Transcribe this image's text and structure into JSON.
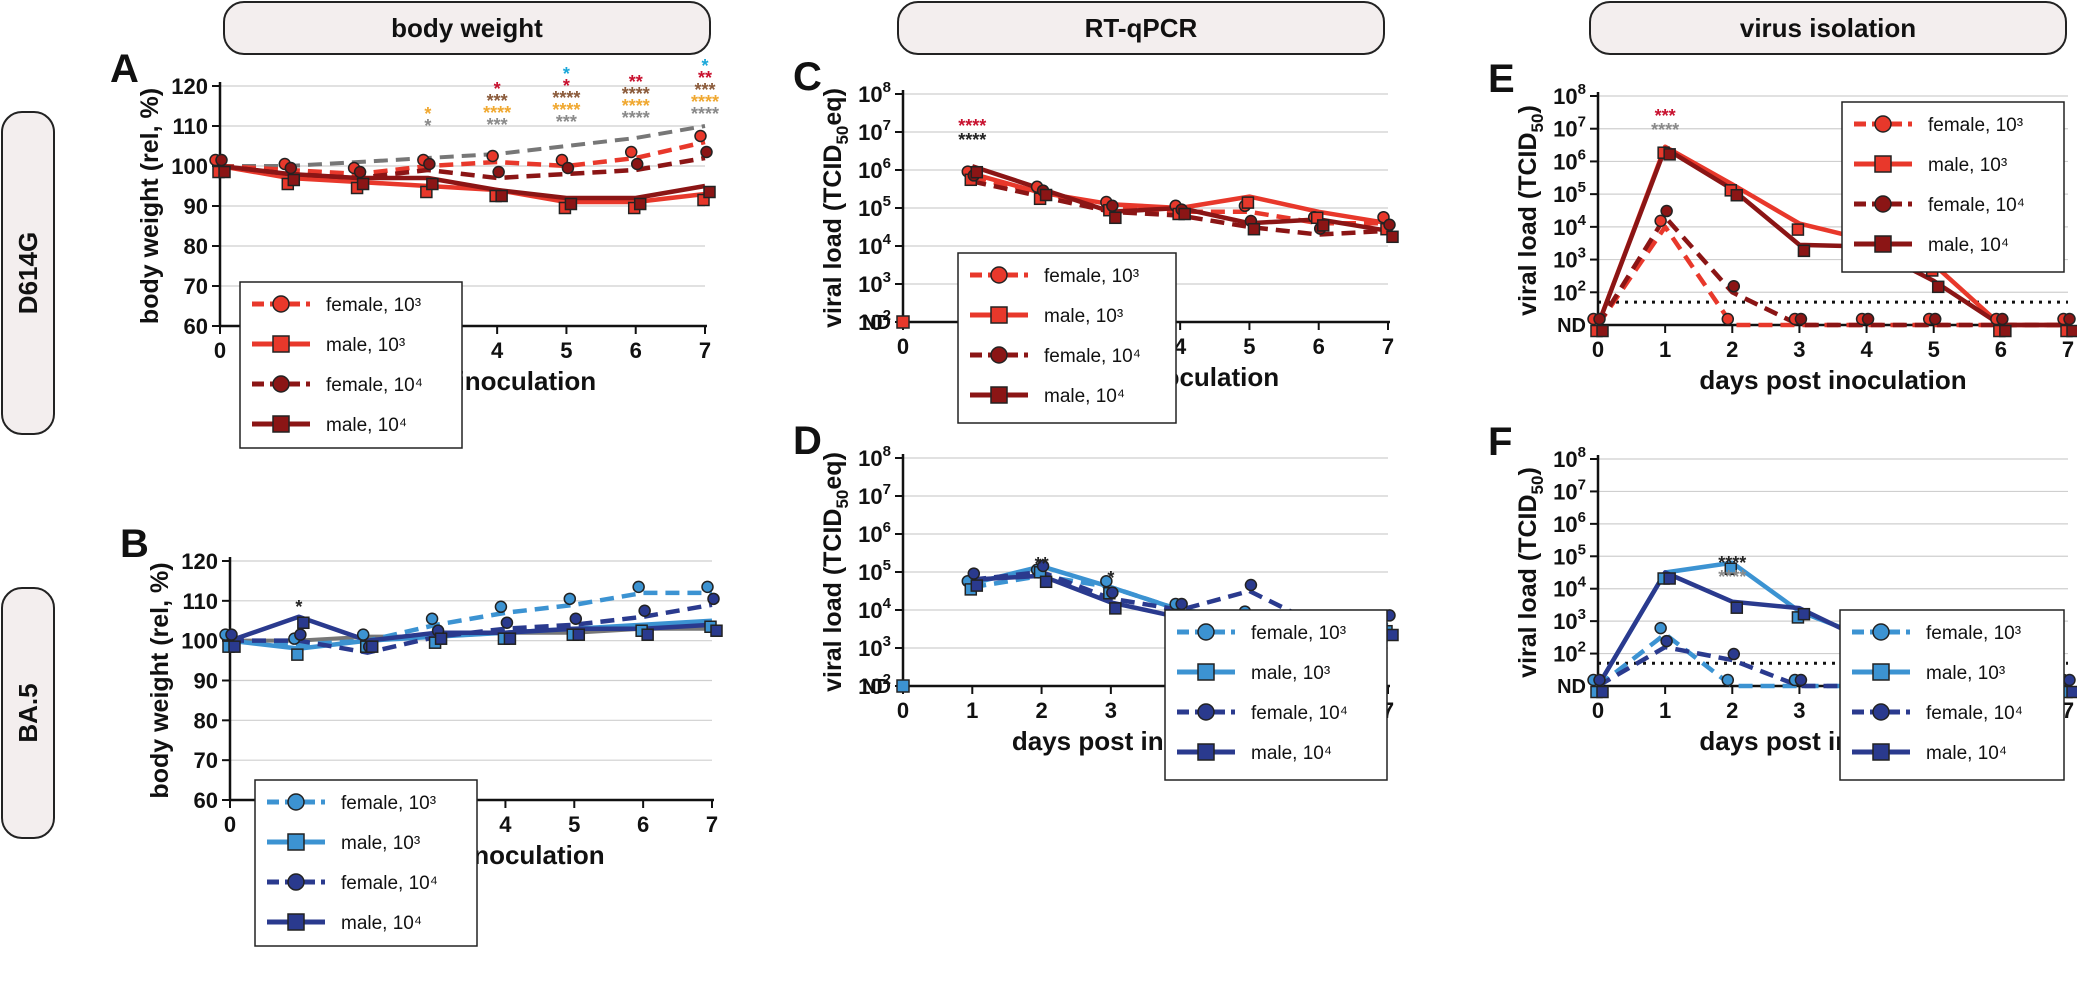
{
  "columns": [
    {
      "label": "body weight"
    },
    {
      "label": "RT-qPCR"
    },
    {
      "label": "virus isolation"
    }
  ],
  "rows": [
    {
      "label": "D614G"
    },
    {
      "label": "BA.5"
    }
  ],
  "colors": {
    "red_light": "#e8382b",
    "red_dark": "#8b1515",
    "blue_light": "#3c93d2",
    "blue_dark": "#2a3a8e",
    "gray": "#777777",
    "sig_crimson": "#c8102e",
    "sig_brown": "#8a5a3a",
    "sig_orange": "#f0a830",
    "sig_gray": "#8a8a8a",
    "sig_cyan": "#1aa7d9",
    "sig_black": "#222222"
  },
  "chart_data": [
    {
      "panel": "A",
      "type": "line",
      "xlabel": "days post inoculation",
      "ylabel": "body weight (rel, %)",
      "x": [
        0,
        1,
        2,
        3,
        4,
        5,
        6,
        7
      ],
      "ylim": [
        60,
        120
      ],
      "yticks": [
        60,
        70,
        80,
        90,
        100,
        110,
        120
      ],
      "legend": [
        "female, 10³",
        "male, 10³",
        "female, 10⁴",
        "male, 10⁴"
      ],
      "series": [
        {
          "name": "female, 10³",
          "values": [
            100,
            99,
            98,
            100,
            101,
            100,
            102,
            106
          ]
        },
        {
          "name": "male, 10³",
          "values": [
            100,
            97,
            96,
            95,
            94,
            91,
            91,
            93
          ]
        },
        {
          "name": "female, 10⁴",
          "values": [
            100,
            98,
            97,
            99,
            97,
            98,
            99,
            102
          ]
        },
        {
          "name": "male, 10⁴",
          "values": [
            100,
            98,
            97,
            97,
            94,
            92,
            92,
            95
          ]
        },
        {
          "name": "reference (gray)",
          "values": [
            100,
            100,
            101,
            102,
            103,
            105,
            107,
            110
          ]
        }
      ],
      "significance": [
        {
          "day": 3,
          "marks": [
            "*",
            "*"
          ]
        },
        {
          "day": 4,
          "marks": [
            "*",
            "***",
            "****",
            "***"
          ]
        },
        {
          "day": 5,
          "marks": [
            "*",
            "*",
            "****",
            "****",
            "***"
          ]
        },
        {
          "day": 6,
          "marks": [
            "**",
            "****",
            "****",
            "****"
          ]
        },
        {
          "day": 7,
          "marks": [
            "*",
            "**",
            "***",
            "****",
            "****"
          ]
        }
      ]
    },
    {
      "panel": "B",
      "type": "line",
      "xlabel": "days post inoculation",
      "ylabel": "body weight (rel, %)",
      "x": [
        0,
        1,
        2,
        3,
        4,
        5,
        6,
        7
      ],
      "ylim": [
        60,
        120
      ],
      "yticks": [
        60,
        70,
        80,
        90,
        100,
        110,
        120
      ],
      "legend": [
        "female, 10³",
        "male, 10³",
        "female, 10⁴",
        "male, 10⁴"
      ],
      "series": [
        {
          "name": "female, 10³",
          "values": [
            100,
            99,
            100,
            104,
            107,
            109,
            112,
            112
          ]
        },
        {
          "name": "male, 10³",
          "values": [
            100,
            98,
            100,
            101,
            102,
            103,
            104,
            105
          ]
        },
        {
          "name": "female, 10⁴",
          "values": [
            100,
            100,
            97,
            101,
            103,
            104,
            106,
            109
          ]
        },
        {
          "name": "male, 10⁴",
          "values": [
            100,
            106,
            100,
            102,
            102,
            103,
            103,
            104
          ]
        },
        {
          "name": "reference (gray)",
          "values": [
            100,
            100,
            101,
            101,
            102,
            102,
            103,
            103
          ]
        }
      ],
      "significance": [
        {
          "day": 1,
          "marks": [
            "*"
          ]
        }
      ]
    },
    {
      "panel": "C",
      "type": "line",
      "yscale": "log",
      "xlabel": "days post inoculation",
      "ylabel": "viral load (TCID50eq)",
      "x": [
        0,
        1,
        2,
        3,
        4,
        5,
        6,
        7
      ],
      "ylim_exponent": [
        2,
        8
      ],
      "ytick_exponents": [
        2,
        3,
        4,
        5,
        6,
        7,
        8
      ],
      "ytick_bottom_label": "ND",
      "legend": [
        "female, 10³",
        "male, 10³",
        "female, 10⁴",
        "male, 10⁴"
      ],
      "series_log10": [
        {
          "name": "female, 10³",
          "values": [
            null,
            5.8,
            5.4,
            5.0,
            4.9,
            4.9,
            4.6,
            4.6
          ]
        },
        {
          "name": "male, 10³",
          "values": [
            null,
            5.9,
            5.4,
            5.1,
            5.0,
            5.3,
            4.9,
            4.6
          ]
        },
        {
          "name": "female, 10⁴",
          "values": [
            null,
            5.7,
            5.3,
            4.9,
            4.8,
            4.5,
            4.3,
            4.4
          ]
        },
        {
          "name": "male, 10⁴",
          "values": [
            null,
            6.1,
            5.5,
            4.9,
            5.0,
            4.6,
            4.7,
            4.4
          ]
        }
      ],
      "significance": [
        {
          "day": 1,
          "marks": [
            "****",
            "****"
          ]
        }
      ]
    },
    {
      "panel": "D",
      "type": "line",
      "yscale": "log",
      "xlabel": "days post inoculation",
      "ylabel": "viral load (TCID50eq)",
      "x": [
        0,
        1,
        2,
        3,
        4,
        5,
        6,
        7
      ],
      "ylim_exponent": [
        2,
        8
      ],
      "ytick_exponents": [
        2,
        3,
        4,
        5,
        6,
        7,
        8
      ],
      "ytick_bottom_label": "ND",
      "legend": [
        "female, 10³",
        "male, 10³",
        "female, 10⁴",
        "male, 10⁴"
      ],
      "series_log10": [
        {
          "name": "female, 10³",
          "values": [
            null,
            4.6,
            4.9,
            4.6,
            4.0,
            3.8,
            3.6,
            3.2
          ]
        },
        {
          "name": "male, 10³",
          "values": [
            null,
            4.7,
            5.15,
            4.6,
            4.0,
            3.5,
            3.8,
            3.6
          ]
        },
        {
          "name": "female, 10⁴",
          "values": [
            null,
            4.8,
            5.0,
            4.3,
            4.0,
            4.5,
            3.6,
            3.7
          ]
        },
        {
          "name": "male, 10⁴",
          "values": [
            null,
            4.8,
            4.9,
            4.2,
            3.8,
            3.3,
            3.4,
            3.5
          ]
        }
      ],
      "significance": [
        {
          "day": 2,
          "marks": [
            "**"
          ]
        },
        {
          "day": 3,
          "marks": [
            "*"
          ]
        }
      ]
    },
    {
      "panel": "E",
      "type": "line",
      "yscale": "log",
      "xlabel": "days post inoculation",
      "ylabel": "viral load (TCID50)",
      "x": [
        0,
        1,
        2,
        3,
        4,
        5,
        6,
        7
      ],
      "ylim_exponent": [
        1,
        8
      ],
      "ytick_exponents": [
        2,
        3,
        4,
        5,
        6,
        7,
        8
      ],
      "ytick_bottom_label": "ND",
      "detection_limit_log10": 1.7,
      "legend": [
        "female, 10³",
        "male, 10³",
        "female, 10⁴",
        "male, 10⁴"
      ],
      "series_log10": [
        {
          "name": "female, 10³",
          "values": [
            1,
            4.0,
            1,
            1,
            1,
            1,
            1,
            1
          ]
        },
        {
          "name": "male, 10³",
          "values": [
            1,
            6.45,
            5.3,
            4.1,
            3.6,
            2.85,
            1,
            1
          ]
        },
        {
          "name": "female, 10⁴",
          "values": [
            1,
            4.3,
            2.0,
            1,
            1,
            1,
            1,
            1
          ]
        },
        {
          "name": "male, 10⁴",
          "values": [
            1,
            6.4,
            5.15,
            3.45,
            3.4,
            2.35,
            1,
            1
          ]
        }
      ],
      "significance": [
        {
          "day": 1,
          "marks": [
            "***",
            "****"
          ]
        }
      ]
    },
    {
      "panel": "F",
      "type": "line",
      "yscale": "log",
      "xlabel": "days post inoculation",
      "ylabel": "viral load (TCID50)",
      "x": [
        0,
        1,
        2,
        3,
        4,
        5,
        6,
        7
      ],
      "ylim_exponent": [
        1,
        8
      ],
      "ytick_exponents": [
        2,
        3,
        4,
        5,
        6,
        7,
        8
      ],
      "ytick_bottom_label": "ND",
      "detection_limit_log10": 1.7,
      "legend": [
        "female, 10³",
        "male, 10³",
        "female, 10⁴",
        "male, 10⁴"
      ],
      "series_log10": [
        {
          "name": "female, 10³",
          "values": [
            1,
            2.6,
            1,
            1,
            1,
            1,
            1,
            1
          ]
        },
        {
          "name": "male, 10³",
          "values": [
            1,
            4.5,
            4.8,
            3.3,
            2.5,
            1.8,
            1,
            1
          ]
        },
        {
          "name": "female, 10⁴",
          "values": [
            1,
            2.2,
            1.8,
            1,
            1,
            1,
            1,
            1
          ]
        },
        {
          "name": "male, 10⁴",
          "values": [
            1,
            4.5,
            3.6,
            3.4,
            2.4,
            1,
            1,
            1
          ]
        }
      ],
      "significance": [
        {
          "day": 2,
          "marks": [
            "****",
            "****"
          ]
        }
      ]
    }
  ]
}
